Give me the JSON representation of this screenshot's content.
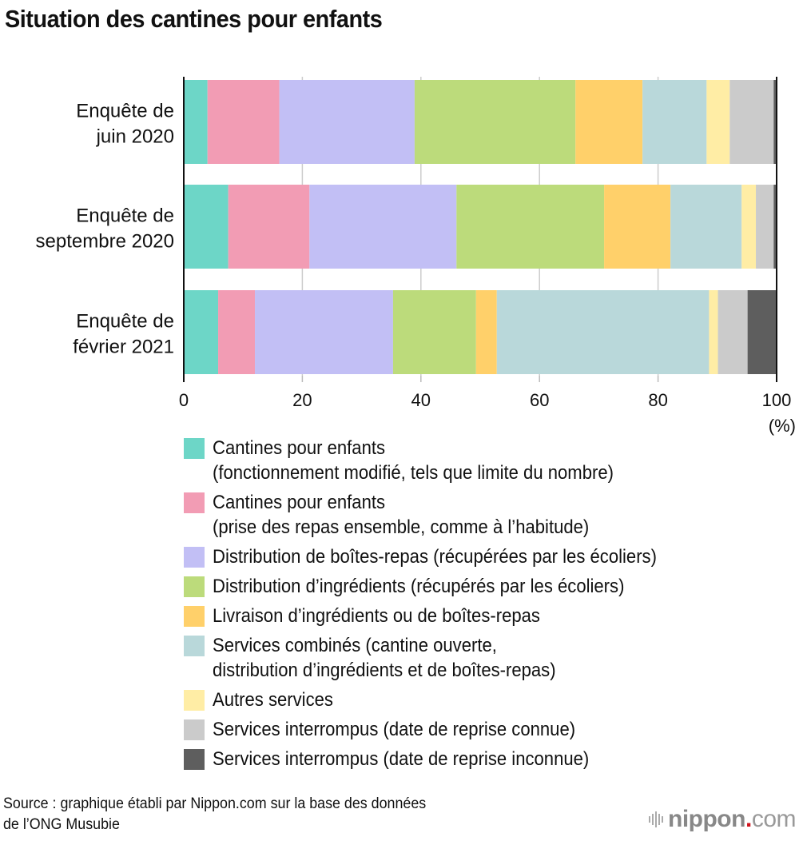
{
  "chart_data": {
    "type": "bar",
    "orientation": "horizontal",
    "stacked": true,
    "title": "Situation des cantines pour enfants",
    "xlabel": "",
    "xunit": "(%)",
    "xlim": [
      0,
      100
    ],
    "xticks": [
      0,
      20,
      40,
      60,
      80,
      100
    ],
    "grid": true,
    "legend_position": "bottom",
    "categories": [
      [
        "Enquête de",
        "juin 2020"
      ],
      [
        "Enquête de",
        "septembre 2020"
      ],
      [
        "Enquête de",
        "février 2021"
      ]
    ],
    "series": [
      {
        "name": "Cantines pour enfants\n(fonctionnement modifié, tels que limite du nombre)",
        "color": "#6dd6c7",
        "values": [
          4.0,
          7.5,
          5.8
        ]
      },
      {
        "name": "Cantines pour enfants\n(prise des repas ensemble, comme à l’habitude)",
        "color": "#f29cb4",
        "values": [
          12.1,
          13.7,
          6.2
        ]
      },
      {
        "name": "Distribution de boîtes-repas (récupérées par les écoliers)",
        "color": "#c2bff5",
        "values": [
          22.8,
          24.8,
          23.3
        ]
      },
      {
        "name": "Distribution d’ingrédients (récupérés par les écoliers)",
        "color": "#bcdb7b",
        "values": [
          27.1,
          24.9,
          14.0
        ]
      },
      {
        "name": "Livraison d’ingrédients ou de boîtes-repas",
        "color": "#ffd06a",
        "values": [
          11.3,
          11.2,
          3.5
        ]
      },
      {
        "name": "Services combinés (cantine ouverte,\ndistribution d’ingrédients et de boîtes-repas)",
        "color": "#b9d8da",
        "values": [
          10.8,
          12.0,
          35.8
        ]
      },
      {
        "name": "Autres services",
        "color": "#ffeda5",
        "values": [
          3.9,
          2.4,
          1.5
        ]
      },
      {
        "name": "Services interrompus (date de reprise connue)",
        "color": "#cbcbcb",
        "values": [
          7.4,
          3.0,
          5.0
        ]
      },
      {
        "name": "Services interrompus (date de reprise inconnue)",
        "color": "#5e5e5e",
        "values": [
          0.5,
          0.5,
          4.9
        ]
      }
    ]
  },
  "footer": {
    "source": "Source : graphique établi par Nippon.com sur la base des données\nde l’ONG Musubie",
    "logo_main": "nippon",
    "logo_dot": ".",
    "logo_suffix": "com"
  }
}
